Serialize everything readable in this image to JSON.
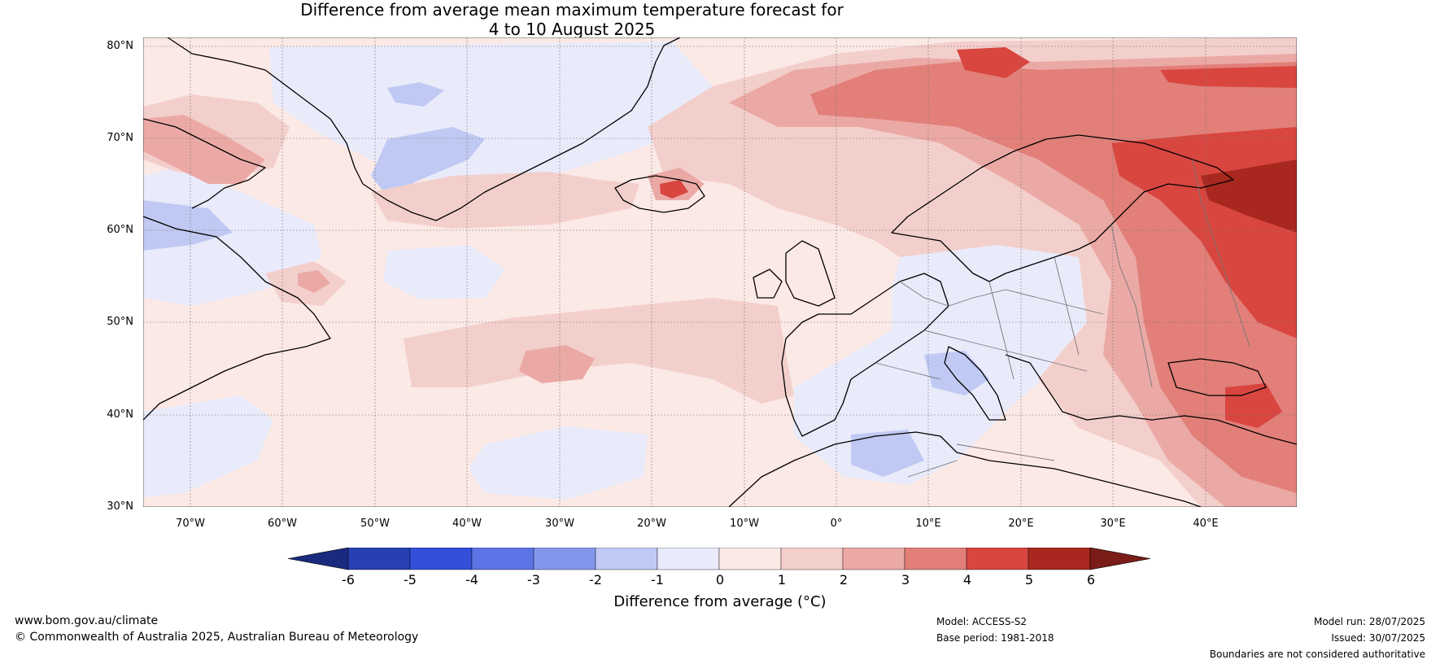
{
  "title": {
    "line1": "Difference from average mean maximum temperature forecast for",
    "line2": "4 to 10 August 2025"
  },
  "map": {
    "lat_labels": [
      "80°N",
      "70°N",
      "60°N",
      "50°N",
      "40°N",
      "30°N"
    ],
    "lon_labels": [
      "70°W",
      "60°W",
      "50°W",
      "40°W",
      "30°W",
      "20°W",
      "10°W",
      "0°",
      "10°E",
      "20°E",
      "30°E",
      "40°E"
    ],
    "lat_range": [
      30,
      81
    ],
    "lon_range": [
      -75,
      50
    ],
    "background_anomaly_color": "#fbe9e6"
  },
  "colorbar": {
    "label": "Difference from average (°C)",
    "ticks": [
      "-6",
      "-5",
      "-4",
      "-3",
      "-2",
      "-1",
      "0",
      "1",
      "2",
      "3",
      "4",
      "5",
      "6"
    ],
    "colors": [
      "#1a2a7e",
      "#2640b4",
      "#334fd9",
      "#5b75e6",
      "#8396ec",
      "#c0c9f3",
      "#e9ebfb",
      "#fbe9e6",
      "#f3cfcb",
      "#eba9a6",
      "#e27f79",
      "#d8463f",
      "#a8281f",
      "#7a1c17"
    ]
  },
  "footer": {
    "website": "www.bom.gov.au/climate",
    "copyright": "© Commonwealth of Australia 2025, Australian Bureau of Meteorology",
    "model": "Model: ACCESS-S2",
    "base_period": "Base period: 1981-2018",
    "model_run": "Model run: 28/07/2025",
    "issued": "Issued: 30/07/2025",
    "disclaimer": "Boundaries are not considered authoritative"
  }
}
